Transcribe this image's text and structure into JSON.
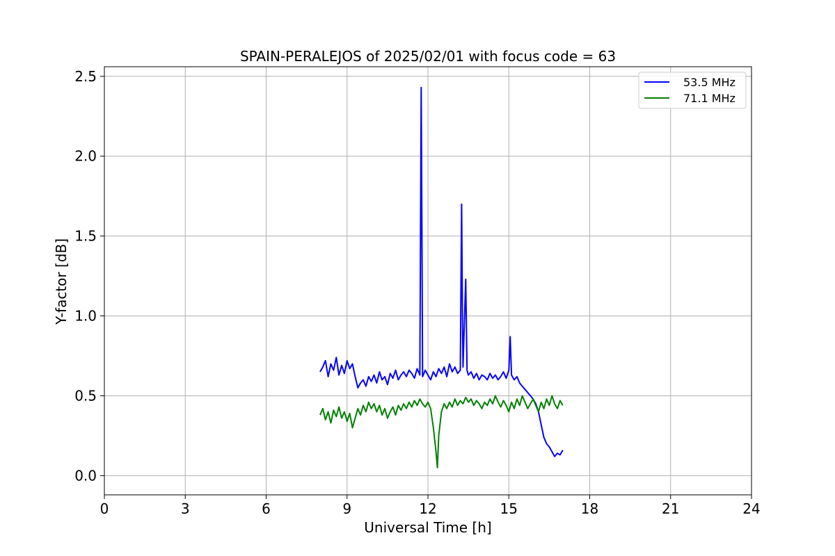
{
  "chart_data": {
    "type": "line",
    "title": "SPAIN-PERALEJOS of 2025/02/01 with focus code = 63",
    "xlabel": "Universal Time [h]",
    "ylabel": "Y-factor [dB]",
    "xlim": [
      0,
      24
    ],
    "ylim": [
      -0.12,
      2.56
    ],
    "xticks": [
      0,
      3,
      6,
      9,
      12,
      15,
      18,
      21,
      24
    ],
    "xtick_labels": [
      "0",
      "3",
      "6",
      "9",
      "12",
      "15",
      "18",
      "21",
      "24"
    ],
    "yticks": [
      0.0,
      0.5,
      1.0,
      1.5,
      2.0,
      2.5
    ],
    "ytick_labels": [
      "0.0",
      "0.5",
      "1.0",
      "1.5",
      "2.0",
      "2.5"
    ],
    "grid": true,
    "legend_position": "top-right",
    "series": [
      {
        "name": "53.5 MHz",
        "color": "#0000ff",
        "x": [
          8.0,
          8.1,
          8.2,
          8.3,
          8.4,
          8.5,
          8.6,
          8.7,
          8.8,
          8.9,
          9.0,
          9.1,
          9.2,
          9.3,
          9.4,
          9.5,
          9.6,
          9.7,
          9.8,
          9.9,
          10.0,
          10.1,
          10.2,
          10.3,
          10.4,
          10.5,
          10.6,
          10.7,
          10.8,
          10.9,
          11.0,
          11.1,
          11.2,
          11.3,
          11.4,
          11.5,
          11.6,
          11.7,
          11.75,
          11.78,
          11.8,
          11.9,
          12.0,
          12.1,
          12.2,
          12.3,
          12.4,
          12.5,
          12.6,
          12.7,
          12.8,
          12.9,
          13.0,
          13.1,
          13.2,
          13.25,
          13.28,
          13.3,
          13.4,
          13.45,
          13.5,
          13.6,
          13.7,
          13.8,
          13.9,
          14.0,
          14.1,
          14.2,
          14.3,
          14.4,
          14.5,
          14.6,
          14.7,
          14.8,
          14.9,
          15.0,
          15.05,
          15.1,
          15.2,
          15.3,
          15.4,
          15.5,
          15.6,
          15.7,
          15.8,
          15.9,
          16.0,
          16.1,
          16.2,
          16.3,
          16.4,
          16.5,
          16.6,
          16.7,
          16.8,
          16.9,
          17.0
        ],
        "y": [
          0.65,
          0.68,
          0.72,
          0.62,
          0.7,
          0.66,
          0.74,
          0.63,
          0.69,
          0.64,
          0.72,
          0.67,
          0.7,
          0.62,
          0.55,
          0.58,
          0.6,
          0.56,
          0.62,
          0.59,
          0.63,
          0.58,
          0.65,
          0.6,
          0.62,
          0.57,
          0.64,
          0.61,
          0.66,
          0.6,
          0.63,
          0.65,
          0.62,
          0.66,
          0.64,
          0.61,
          0.67,
          0.63,
          2.43,
          1.4,
          0.62,
          0.66,
          0.63,
          0.6,
          0.65,
          0.62,
          0.67,
          0.64,
          0.68,
          0.62,
          0.7,
          0.65,
          0.68,
          0.64,
          0.66,
          1.7,
          1.0,
          0.68,
          1.23,
          0.66,
          0.63,
          0.65,
          0.61,
          0.64,
          0.6,
          0.63,
          0.62,
          0.6,
          0.64,
          0.61,
          0.63,
          0.6,
          0.62,
          0.65,
          0.61,
          0.66,
          0.87,
          0.63,
          0.6,
          0.62,
          0.58,
          0.56,
          0.54,
          0.52,
          0.5,
          0.48,
          0.45,
          0.4,
          0.32,
          0.24,
          0.2,
          0.18,
          0.15,
          0.12,
          0.14,
          0.13,
          0.16
        ]
      },
      {
        "name": "71.1 MHz",
        "color": "#008000",
        "x": [
          8.0,
          8.1,
          8.2,
          8.3,
          8.4,
          8.5,
          8.6,
          8.7,
          8.8,
          8.9,
          9.0,
          9.1,
          9.2,
          9.3,
          9.4,
          9.5,
          9.6,
          9.7,
          9.8,
          9.9,
          10.0,
          10.1,
          10.2,
          10.3,
          10.4,
          10.5,
          10.6,
          10.7,
          10.8,
          10.9,
          11.0,
          11.1,
          11.2,
          11.3,
          11.4,
          11.5,
          11.6,
          11.7,
          11.8,
          11.9,
          12.0,
          12.1,
          12.2,
          12.3,
          12.35,
          12.4,
          12.5,
          12.6,
          12.7,
          12.8,
          12.9,
          13.0,
          13.1,
          13.2,
          13.3,
          13.4,
          13.5,
          13.6,
          13.7,
          13.8,
          13.9,
          14.0,
          14.1,
          14.2,
          14.3,
          14.4,
          14.5,
          14.6,
          14.7,
          14.8,
          14.9,
          15.0,
          15.1,
          15.2,
          15.3,
          15.4,
          15.5,
          15.6,
          15.7,
          15.8,
          15.9,
          16.0,
          16.1,
          16.2,
          16.3,
          16.4,
          16.5,
          16.6,
          16.7,
          16.8,
          16.9,
          17.0
        ],
        "y": [
          0.38,
          0.42,
          0.35,
          0.4,
          0.33,
          0.41,
          0.37,
          0.43,
          0.36,
          0.4,
          0.34,
          0.39,
          0.3,
          0.36,
          0.42,
          0.38,
          0.44,
          0.4,
          0.46,
          0.42,
          0.45,
          0.4,
          0.44,
          0.38,
          0.42,
          0.36,
          0.4,
          0.43,
          0.38,
          0.44,
          0.41,
          0.45,
          0.42,
          0.46,
          0.43,
          0.47,
          0.44,
          0.48,
          0.45,
          0.43,
          0.46,
          0.42,
          0.3,
          0.15,
          0.05,
          0.25,
          0.4,
          0.45,
          0.42,
          0.46,
          0.43,
          0.48,
          0.44,
          0.47,
          0.45,
          0.49,
          0.46,
          0.48,
          0.44,
          0.47,
          0.45,
          0.42,
          0.46,
          0.44,
          0.48,
          0.45,
          0.5,
          0.46,
          0.43,
          0.47,
          0.44,
          0.4,
          0.46,
          0.42,
          0.48,
          0.44,
          0.5,
          0.46,
          0.42,
          0.45,
          0.48,
          0.44,
          0.4,
          0.46,
          0.42,
          0.48,
          0.44,
          0.5,
          0.45,
          0.42,
          0.47,
          0.44
        ]
      }
    ]
  }
}
